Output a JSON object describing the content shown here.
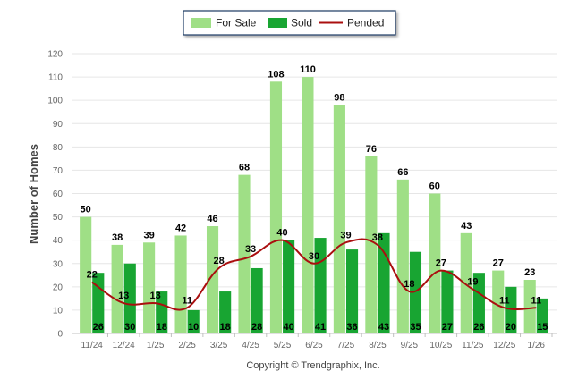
{
  "chart_data": {
    "type": "bar",
    "title": "",
    "xlabel": "",
    "ylabel": "Number of Homes",
    "ylim": [
      0,
      120
    ],
    "yticks": [
      0,
      10,
      20,
      30,
      40,
      50,
      60,
      70,
      80,
      90,
      100,
      110,
      120
    ],
    "grid": true,
    "legend_position": "top-center",
    "categories": [
      "11/24",
      "12/24",
      "1/25",
      "2/25",
      "3/25",
      "4/25",
      "5/25",
      "6/25",
      "7/25",
      "8/25",
      "9/25",
      "10/25",
      "11/25",
      "12/25",
      "1/26"
    ],
    "series": [
      {
        "name": "For Sale",
        "kind": "bar",
        "color": "#9fdf86",
        "values": [
          50,
          38,
          39,
          42,
          46,
          68,
          108,
          110,
          98,
          76,
          66,
          60,
          43,
          27,
          23
        ]
      },
      {
        "name": "Sold",
        "kind": "bar",
        "color": "#18a532",
        "values": [
          26,
          30,
          18,
          10,
          18,
          28,
          40,
          41,
          36,
          43,
          35,
          27,
          26,
          20,
          15
        ]
      },
      {
        "name": "Pended",
        "kind": "line",
        "color": "#aa0f0f",
        "values": [
          22,
          13,
          13,
          11,
          28,
          33,
          40,
          30,
          39,
          38,
          18,
          27,
          19,
          11,
          11
        ]
      }
    ],
    "footer": "Copyright © Trendgraphix, Inc."
  }
}
